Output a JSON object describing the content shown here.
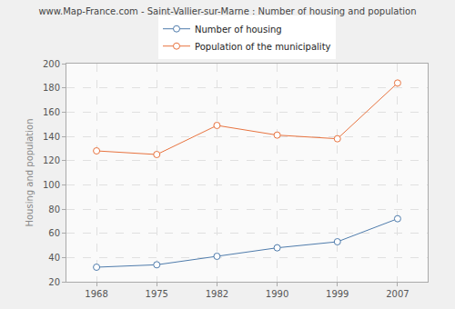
{
  "chart_data": {
    "type": "line",
    "title": "www.Map-France.com - Saint-Vallier-sur-Marne : Number of housing and population",
    "y_label": "Housing and population",
    "categories": [
      "1968",
      "1975",
      "1982",
      "1990",
      "1999",
      "2007"
    ],
    "series": [
      {
        "name": "Number of housing",
        "color": "#4f7cac",
        "values": [
          32,
          34,
          41,
          48,
          53,
          72
        ]
      },
      {
        "name": "Population of the municipality",
        "color": "#e8733f",
        "values": [
          128,
          125,
          149,
          141,
          138,
          184
        ]
      }
    ],
    "ylim": [
      20,
      200
    ],
    "yticks": [
      20,
      40,
      60,
      80,
      100,
      120,
      140,
      160,
      180,
      200
    ],
    "grid": true,
    "legend": "top",
    "marker": "circle"
  }
}
